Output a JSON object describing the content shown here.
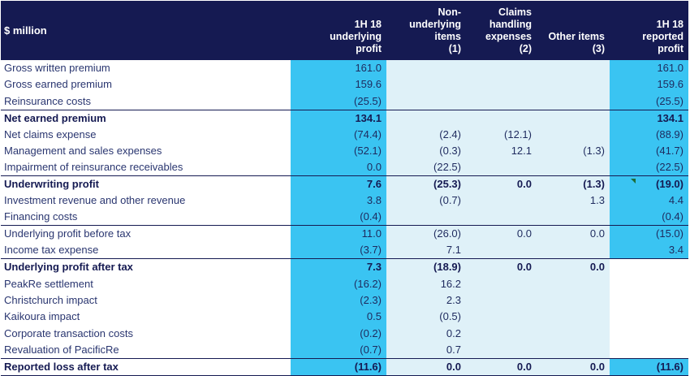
{
  "header": {
    "unit_label": "$ million",
    "columns": [
      [
        "1H 18",
        "underlying",
        "profit"
      ],
      [
        "Non-",
        "underlying",
        "items",
        "(1)"
      ],
      [
        "Claims",
        "handling",
        "expenses",
        "(2)"
      ],
      [
        "Other items",
        "(3)"
      ],
      [
        "1H 18",
        "reported",
        "profit"
      ]
    ]
  },
  "rows": [
    {
      "label": "Gross written premium",
      "values": [
        "161.0",
        "",
        "",
        "",
        "161.0"
      ],
      "bold": false,
      "topline": false,
      "c5_white": false
    },
    {
      "label": "Gross earned premium",
      "values": [
        "159.6",
        "",
        "",
        "",
        "159.6"
      ],
      "bold": false,
      "topline": false,
      "c5_white": false
    },
    {
      "label": "Reinsurance costs",
      "values": [
        "(25.5)",
        "",
        "",
        "",
        "(25.5)"
      ],
      "bold": false,
      "topline": false,
      "c5_white": false
    },
    {
      "label": "Net earned premium",
      "values": [
        "134.1",
        "",
        "",
        "",
        "134.1"
      ],
      "bold": true,
      "topline": true,
      "c5_white": false
    },
    {
      "label": "Net claims expense",
      "values": [
        "(74.4)",
        "(2.4)",
        "(12.1)",
        "",
        "(88.9)"
      ],
      "bold": false,
      "topline": false,
      "c5_white": false
    },
    {
      "label": "Management and sales expenses",
      "values": [
        "(52.1)",
        "(0.3)",
        "12.1",
        "(1.3)",
        "(41.7)"
      ],
      "bold": false,
      "topline": false,
      "c5_white": false
    },
    {
      "label": "Impairment of reinsurance receivables",
      "values": [
        "0.0",
        "(22.5)",
        "",
        "",
        "(22.5)"
      ],
      "bold": false,
      "topline": false,
      "c5_white": false
    },
    {
      "label": "Underwriting profit",
      "values": [
        "7.6",
        "(25.3)",
        "0.0",
        "(1.3)",
        "(19.0)"
      ],
      "bold": true,
      "topline": true,
      "c5_white": false
    },
    {
      "label": "Investment revenue and other revenue",
      "values": [
        "3.8",
        "(0.7)",
        "",
        "1.3",
        "4.4"
      ],
      "bold": false,
      "topline": false,
      "c5_white": false
    },
    {
      "label": "Financing costs",
      "values": [
        "(0.4)",
        "",
        "",
        "",
        "(0.4)"
      ],
      "bold": false,
      "topline": false,
      "c5_white": false
    },
    {
      "label": "Underlying profit before tax",
      "values": [
        "11.0",
        "(26.0)",
        "0.0",
        "0.0",
        "(15.0)"
      ],
      "bold": false,
      "topline": true,
      "c5_white": false
    },
    {
      "label": "Income tax expense",
      "values": [
        "(3.7)",
        "7.1",
        "",
        "",
        "3.4"
      ],
      "bold": false,
      "topline": false,
      "c5_white": false
    },
    {
      "label": "Underlying profit after tax",
      "values": [
        "7.3",
        "(18.9)",
        "0.0",
        "0.0",
        ""
      ],
      "bold": true,
      "topline": true,
      "c5_white": true
    },
    {
      "label": "PeakRe settlement",
      "values": [
        "(16.2)",
        "16.2",
        "",
        "",
        ""
      ],
      "bold": false,
      "topline": false,
      "c5_white": true
    },
    {
      "label": "Christchurch impact",
      "values": [
        "(2.3)",
        "2.3",
        "",
        "",
        ""
      ],
      "bold": false,
      "topline": false,
      "c5_white": true
    },
    {
      "label": "Kaikoura impact",
      "values": [
        "0.5",
        "(0.5)",
        "",
        "",
        ""
      ],
      "bold": false,
      "topline": false,
      "c5_white": true
    },
    {
      "label": "Corporate transaction costs",
      "values": [
        "(0.2)",
        "0.2",
        "",
        "",
        ""
      ],
      "bold": false,
      "topline": false,
      "c5_white": true
    },
    {
      "label": "Revaluation of PacificRe",
      "values": [
        "(0.7)",
        "0.7",
        "",
        "",
        ""
      ],
      "bold": false,
      "topline": false,
      "c5_white": true
    },
    {
      "label": "Reported loss after tax",
      "values": [
        "(11.6)",
        "0.0",
        "0.0",
        "0.0",
        "(11.6)"
      ],
      "bold": true,
      "topline": true,
      "c5_white": false
    }
  ],
  "colors": {
    "header_bg": "#151a52",
    "highlight": "#3ac4f2",
    "light_fill": "#dff1f8",
    "text": "#1e2a5e"
  }
}
